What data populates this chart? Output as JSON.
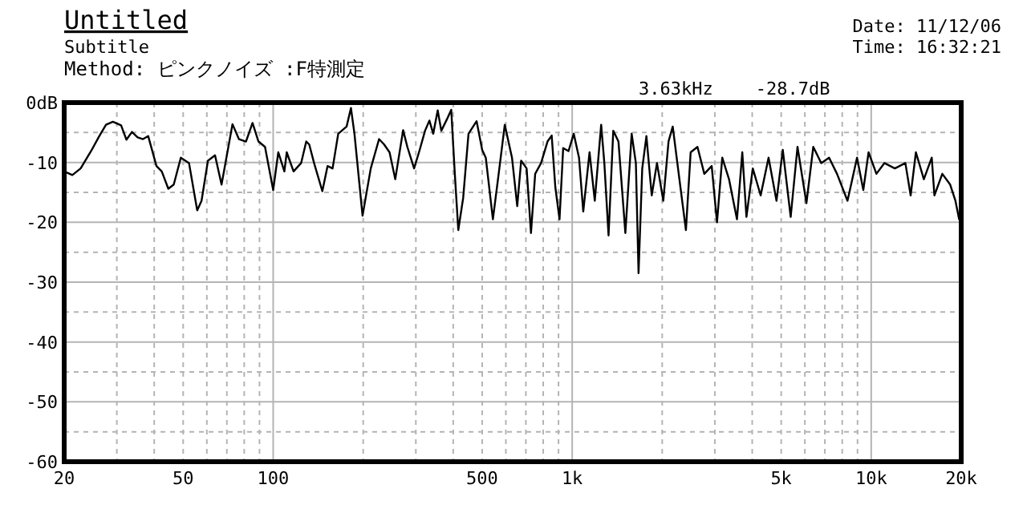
{
  "chart_data": {
    "type": "line",
    "title": "Untitled",
    "subtitle": "Subtitle",
    "annotations": [
      "Method: ピンクノイズ :F特測定",
      "Date: 11/12/06",
      "Time: 16:32:21",
      "3.63kHz    -28.7dB"
    ],
    "log": "x",
    "grid": true,
    "marker": "none",
    "line_style": "solid",
    "xlim": [
      20,
      20000
    ],
    "ylim": [
      -60,
      0
    ],
    "xticks": [
      20,
      50,
      100,
      500,
      {
        "value": 1000,
        "label": "1k"
      },
      {
        "value": 5000,
        "label": "5k"
      },
      {
        "value": 10000,
        "label": "10k"
      },
      {
        "value": 20000,
        "label": "20k"
      }
    ],
    "yticks": [
      {
        "value": 0,
        "label": "0dB"
      },
      -10,
      -20,
      -30,
      -40,
      -50,
      -60
    ],
    "x": [
      20,
      21.3,
      22.7,
      24.6,
      26.2,
      27.6,
      29.1,
      31.0,
      32.3,
      33.7,
      35.2,
      36.7,
      38.2,
      40.7,
      42.4,
      44.6,
      46.5,
      49.1,
      52.3,
      55.7,
      57.6,
      60.5,
      63.9,
      67.2,
      73.1,
      76.8,
      81.1,
      85.3,
      89.3,
      93.9,
      100,
      104,
      109,
      111,
      117,
      124,
      129,
      132,
      137,
      146,
      152,
      158,
      165,
      176,
      182,
      187,
      199,
      212,
      226,
      235,
      245,
      256,
      272,
      281,
      296,
      309,
      322,
      333,
      343,
      355,
      365,
      381,
      394,
      405,
      416,
      432,
      450,
      479,
      500,
      514,
      543,
      566,
      595,
      629,
      655,
      675,
      704,
      728,
      752,
      787,
      827,
      854,
      878,
      907,
      933,
      972,
      1012,
      1054,
      1089,
      1143,
      1190,
      1250,
      1281,
      1323,
      1372,
      1428,
      1506,
      1581,
      1633,
      1667,
      1715,
      1771,
      1845,
      1921,
      2017,
      2100,
      2169,
      2278,
      2401,
      2490,
      2624,
      2766,
      2928,
      3050,
      3176,
      3346,
      3557,
      3706,
      3826,
      4018,
      4269,
      4537,
      4823,
      5062,
      5379,
      5669,
      6073,
      6402,
      6805,
      7231,
      7686,
      8332,
      8967,
      9410,
      9800,
      10410,
      11070,
      12000,
      13010,
      13550,
      14110,
      15000,
      15940,
      16270,
      17290,
      18370,
      19130,
      19680,
      20000
    ],
    "series": [
      {
        "color": "#000000",
        "values": [
          -11.5,
          -12.1,
          -11,
          -8.1,
          -5.6,
          -3.7,
          -3.2,
          -3.8,
          -6.2,
          -4.9,
          -5.8,
          -6.1,
          -5.6,
          -10.6,
          -11.5,
          -14.4,
          -13.7,
          -9.2,
          -10.1,
          -18,
          -16.4,
          -9.7,
          -8.8,
          -13.7,
          -3.6,
          -6.1,
          -6.5,
          -3.4,
          -6.5,
          -7.4,
          -14.6,
          -8.3,
          -11.5,
          -8.3,
          -11.5,
          -10.1,
          -6.5,
          -7,
          -10.1,
          -14.8,
          -10.6,
          -11,
          -5.2,
          -4,
          -0.9,
          -5.2,
          -18.9,
          -11,
          -6.1,
          -7,
          -8.3,
          -12.8,
          -4.6,
          -7.4,
          -11,
          -7.9,
          -4.7,
          -3,
          -5.2,
          -1.3,
          -4.7,
          -2.8,
          -1.2,
          -11.9,
          -21.3,
          -15.9,
          -5.2,
          -3.1,
          -7.9,
          -9.2,
          -19.5,
          -12.4,
          -3.7,
          -9.2,
          -17.3,
          -9.7,
          -11,
          -21.8,
          -11.9,
          -10.1,
          -6.5,
          -5.5,
          -14.1,
          -19.5,
          -7.6,
          -8.1,
          -5.2,
          -9.2,
          -18.2,
          -8.3,
          -16.4,
          -3.7,
          -10.1,
          -22.2,
          -4.7,
          -6.5,
          -21.8,
          -5.2,
          -10.1,
          -28.5,
          -11,
          -5.6,
          -15.5,
          -10.1,
          -16.4,
          -6.5,
          -4,
          -12.4,
          -21.3,
          -8.3,
          -7.4,
          -11.9,
          -10.6,
          -20,
          -9.2,
          -12.8,
          -19.5,
          -8.3,
          -19.1,
          -11,
          -15.5,
          -9.2,
          -16.4,
          -7.9,
          -19.1,
          -7.4,
          -16.8,
          -7.4,
          -10.1,
          -9.2,
          -11.9,
          -16.4,
          -9.2,
          -14.6,
          -8.3,
          -11.9,
          -10.1,
          -11,
          -10.1,
          -15.5,
          -8.3,
          -12.8,
          -9.2,
          -15.5,
          -11.9,
          -13.7,
          -16.4,
          -19.5,
          -17.6
        ]
      }
    ]
  }
}
